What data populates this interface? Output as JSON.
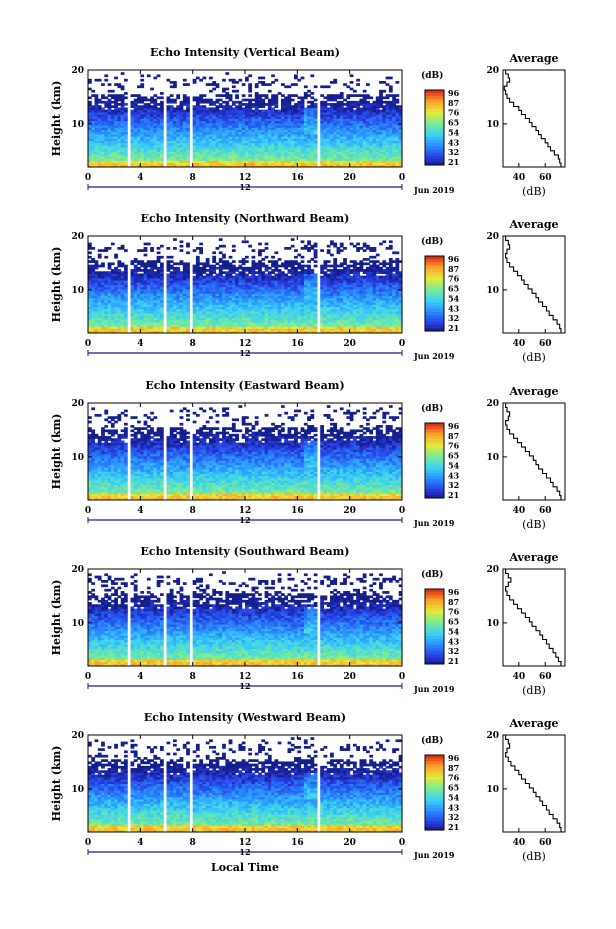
{
  "chart_data": [
    {
      "type": "heatmap",
      "title": "Echo Intensity (Vertical Beam)",
      "ylabel": "Height (km)",
      "xlim": [
        0,
        24
      ],
      "ylim": [
        2,
        20
      ],
      "xticks": [
        "0",
        "4",
        "8",
        "12",
        "16",
        "20",
        "0"
      ],
      "yticks": [
        "10",
        "20"
      ],
      "date_center_label": "12",
      "date_label": "Jun 2019",
      "colorbar_label": "(dB)",
      "colorbar_ticks": [
        "96",
        "87",
        "76",
        "65",
        "54",
        "43",
        "32",
        "21"
      ],
      "data_gaps_hours": [
        [
          3.05,
          3.35
        ],
        [
          3.65,
          3.85
        ],
        [
          5.8,
          6.1
        ],
        [
          7.75,
          8.05
        ],
        [
          17.5,
          17.75
        ]
      ],
      "average": {
        "title": "Average",
        "xlabel": "(dB)",
        "xticks": [
          "40",
          "60"
        ],
        "yticks": [
          "10",
          "20"
        ],
        "xlim": [
          28,
          75
        ],
        "profile_db": [
          72,
          71,
          70,
          67,
          64,
          62,
          60,
          57,
          55,
          53,
          50,
          48,
          45,
          42,
          40,
          36,
          33,
          31,
          30,
          29,
          31,
          33,
          32,
          30,
          29
        ]
      }
    },
    {
      "type": "heatmap",
      "title": "Echo Intensity (Northward Beam)",
      "ylabel": "Height (km)",
      "xlim": [
        0,
        24
      ],
      "ylim": [
        2,
        20
      ],
      "xticks": [
        "0",
        "4",
        "8",
        "12",
        "16",
        "20",
        "0"
      ],
      "yticks": [
        "10",
        "20"
      ],
      "date_center_label": "12",
      "date_label": "Jun 2019",
      "colorbar_label": "(dB)",
      "colorbar_ticks": [
        "96",
        "87",
        "76",
        "65",
        "54",
        "43",
        "32",
        "21"
      ],
      "data_gaps_hours": [
        [
          3.05,
          3.35
        ],
        [
          3.65,
          3.85
        ],
        [
          5.8,
          6.1
        ],
        [
          7.75,
          8.05
        ],
        [
          17.5,
          17.75
        ]
      ],
      "average": {
        "title": "Average",
        "xlabel": "(dB)",
        "xticks": [
          "40",
          "60"
        ],
        "yticks": [
          "10",
          "20"
        ],
        "xlim": [
          28,
          75
        ],
        "profile_db": [
          72,
          71,
          69,
          66,
          63,
          61,
          58,
          55,
          53,
          50,
          47,
          44,
          42,
          39,
          36,
          33,
          31,
          30,
          31,
          33,
          32,
          30,
          29
        ]
      }
    },
    {
      "type": "heatmap",
      "title": "Echo Intensity (Eastward Beam)",
      "ylabel": "Height (km)",
      "xlim": [
        0,
        24
      ],
      "ylim": [
        2,
        20
      ],
      "xticks": [
        "0",
        "4",
        "8",
        "12",
        "16",
        "20",
        "0"
      ],
      "yticks": [
        "10",
        "20"
      ],
      "date_center_label": "12",
      "date_label": "Jun 2019",
      "colorbar_label": "(dB)",
      "colorbar_ticks": [
        "96",
        "87",
        "76",
        "65",
        "54",
        "43",
        "32",
        "21"
      ],
      "data_gaps_hours": [
        [
          3.05,
          3.35
        ],
        [
          3.65,
          3.85
        ],
        [
          5.8,
          6.1
        ],
        [
          7.75,
          8.05
        ],
        [
          17.5,
          17.75
        ]
      ],
      "average": {
        "title": "Average",
        "xlabel": "(dB)",
        "xticks": [
          "40",
          "60"
        ],
        "yticks": [
          "10",
          "20"
        ],
        "xlim": [
          28,
          75
        ],
        "profile_db": [
          72,
          71,
          69,
          66,
          64,
          61,
          58,
          55,
          53,
          51,
          48,
          45,
          42,
          39,
          36,
          33,
          31,
          30,
          32,
          33,
          31,
          30,
          29
        ]
      }
    },
    {
      "type": "heatmap",
      "title": "Echo Intensity (Southward Beam)",
      "ylabel": "Height (km)",
      "xlim": [
        0,
        24
      ],
      "ylim": [
        2,
        20
      ],
      "xticks": [
        "0",
        "4",
        "8",
        "12",
        "16",
        "20",
        "0"
      ],
      "yticks": [
        "10",
        "20"
      ],
      "date_center_label": "12",
      "date_label": "Jun 2019",
      "colorbar_label": "(dB)",
      "colorbar_ticks": [
        "96",
        "87",
        "76",
        "65",
        "54",
        "43",
        "32",
        "21"
      ],
      "data_gaps_hours": [
        [
          3.05,
          3.35
        ],
        [
          3.65,
          3.85
        ],
        [
          5.8,
          6.1
        ],
        [
          7.75,
          8.05
        ],
        [
          17.5,
          17.75
        ]
      ],
      "average": {
        "title": "Average",
        "xlabel": "(dB)",
        "xticks": [
          "40",
          "60"
        ],
        "yticks": [
          "10",
          "20"
        ],
        "xlim": [
          28,
          75
        ],
        "profile_db": [
          72,
          70,
          68,
          66,
          63,
          61,
          58,
          56,
          53,
          50,
          48,
          45,
          42,
          39,
          36,
          33,
          31,
          30,
          32,
          34,
          32,
          30,
          29
        ]
      }
    },
    {
      "type": "heatmap",
      "title": "Echo Intensity (Westward Beam)",
      "ylabel": "Height (km)",
      "xlim": [
        0,
        24
      ],
      "ylim": [
        2,
        20
      ],
      "xticks": [
        "0",
        "4",
        "8",
        "12",
        "16",
        "20",
        "0"
      ],
      "yticks": [
        "10",
        "20"
      ],
      "date_center_label": "12",
      "date_label": "Jun 2019",
      "xlabel": "Local Time",
      "colorbar_label": "(dB)",
      "colorbar_ticks": [
        "96",
        "87",
        "76",
        "65",
        "54",
        "43",
        "32",
        "21"
      ],
      "data_gaps_hours": [
        [
          3.05,
          3.35
        ],
        [
          3.65,
          3.85
        ],
        [
          5.8,
          6.1
        ],
        [
          7.75,
          8.05
        ],
        [
          17.5,
          17.75
        ]
      ],
      "average": {
        "title": "Average",
        "xlabel": "(dB)",
        "xticks": [
          "40",
          "60"
        ],
        "yticks": [
          "10",
          "20"
        ],
        "xlim": [
          28,
          75
        ],
        "profile_db": [
          72,
          71,
          69,
          66,
          63,
          61,
          58,
          56,
          53,
          51,
          48,
          45,
          42,
          40,
          37,
          34,
          32,
          30,
          31,
          33,
          32,
          30,
          29
        ]
      }
    }
  ]
}
